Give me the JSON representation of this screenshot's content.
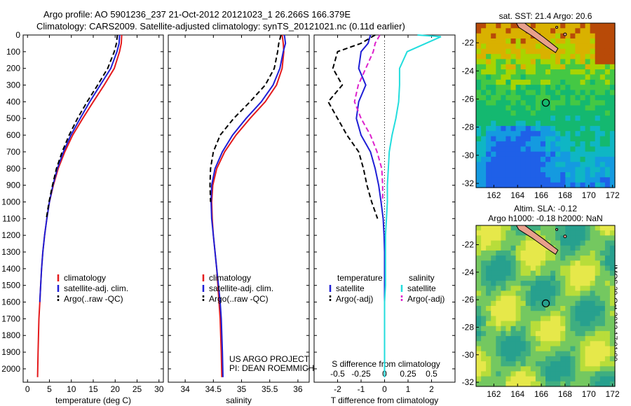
{
  "header": {
    "title_line1": "Argo profile: AO 5901236_237 21-Oct-2012 20121023_1 26.266S 166.379E",
    "title_line2": "Climatology: CARS2009. Satellite-adjusted climatology: synTS_20121021.nc (0.11d earlier)"
  },
  "stamp": "IMOS 30-Oct-2012 17:01:00",
  "colors": {
    "red": "#e41a1c",
    "blue": "#1f1fd6",
    "black": "#000000",
    "cyan": "#22dddd",
    "magenta": "#dd22cc"
  },
  "chart_data": [
    {
      "type": "line",
      "name": "temperature-profile",
      "xlabel": "temperature (deg C)",
      "ylabel": "",
      "xlim": [
        -1,
        31
      ],
      "ylim": [
        2080,
        0
      ],
      "xticks": [
        0,
        5,
        10,
        15,
        20,
        25,
        30
      ],
      "yticks": [
        0,
        100,
        200,
        300,
        400,
        500,
        600,
        700,
        800,
        900,
        1000,
        1100,
        1200,
        1300,
        1400,
        1500,
        1600,
        1700,
        1800,
        1900,
        2000
      ],
      "legend": [
        "climatology",
        "satellite-adj. clim.",
        "Argo(..raw -QC)"
      ],
      "legend_position": "lower-center",
      "series": [
        {
          "name": "climatology",
          "color": "red",
          "dash": "solid",
          "x": [
            21.5,
            21.4,
            21.0,
            19.8,
            17.5,
            15.0,
            12.6,
            10.3,
            8.5,
            7.0,
            5.9,
            5.0,
            4.4,
            3.9,
            3.5,
            3.2,
            3.0,
            2.8,
            2.6,
            2.5,
            2.4,
            2.3
          ],
          "y": [
            0,
            50,
            100,
            200,
            300,
            400,
            500,
            600,
            700,
            800,
            900,
            1000,
            1100,
            1200,
            1300,
            1400,
            1500,
            1600,
            1700,
            1800,
            1900,
            2050
          ]
        },
        {
          "name": "satellite-adj. clim.",
          "color": "blue",
          "dash": "solid",
          "x": [
            21.0,
            20.9,
            20.4,
            19.0,
            16.6,
            14.2,
            12.0,
            9.9,
            8.2,
            6.8,
            5.8,
            5.0,
            4.4,
            3.9,
            3.5,
            3.2,
            3.0,
            2.8
          ],
          "y": [
            0,
            50,
            100,
            200,
            300,
            400,
            500,
            600,
            700,
            800,
            900,
            1000,
            1100,
            1200,
            1300,
            1400,
            1500,
            1600
          ]
        },
        {
          "name": "Argo(..raw -QC)",
          "color": "black",
          "dash": "dashed",
          "x": [
            20.5,
            20.3,
            19.8,
            18.3,
            16.0,
            13.6,
            11.4,
            9.5,
            7.9,
            6.6,
            5.7,
            4.9,
            4.3
          ],
          "y": [
            0,
            50,
            100,
            200,
            300,
            400,
            500,
            600,
            700,
            800,
            900,
            1000,
            1100
          ]
        }
      ]
    },
    {
      "type": "line",
      "name": "salinity-profile",
      "xlabel": "salinity",
      "xlim": [
        33.7,
        36.2
      ],
      "ylim": [
        2080,
        0
      ],
      "xticks": [
        34,
        34.5,
        35,
        35.5,
        36
      ],
      "xticklabels": [
        "34",
        "34.5",
        "35",
        "35.5",
        "36"
      ],
      "legend": [
        "climatology",
        "satellite-adj. clim.",
        "Argo(..raw -QC)"
      ],
      "legend_position": "lower-center",
      "annotation": [
        "US ARGO PROJECT",
        "PI: DEAN ROEMMICH"
      ],
      "series": [
        {
          "name": "climatology",
          "color": "red",
          "dash": "solid",
          "x": [
            35.72,
            35.74,
            35.75,
            35.72,
            35.62,
            35.42,
            35.15,
            34.9,
            34.7,
            34.56,
            34.49,
            34.47,
            34.48,
            34.5,
            34.53,
            34.56,
            34.58,
            34.6,
            34.62,
            34.63,
            34.64,
            34.65
          ],
          "y": [
            0,
            50,
            100,
            200,
            300,
            400,
            500,
            600,
            700,
            800,
            900,
            1000,
            1100,
            1200,
            1300,
            1400,
            1500,
            1600,
            1700,
            1800,
            1900,
            2050
          ]
        },
        {
          "name": "satellite-adj. clim.",
          "color": "blue",
          "dash": "solid",
          "x": [
            35.76,
            35.78,
            35.74,
            35.68,
            35.56,
            35.35,
            35.08,
            34.84,
            34.66,
            34.53,
            34.47,
            34.46,
            34.47,
            34.5,
            34.53,
            34.56,
            34.59,
            34.62,
            34.64,
            34.65,
            34.66,
            34.67
          ],
          "y": [
            0,
            50,
            100,
            200,
            300,
            400,
            500,
            600,
            700,
            800,
            900,
            1000,
            1100,
            1200,
            1300,
            1400,
            1500,
            1600,
            1700,
            1800,
            1900,
            2050
          ]
        },
        {
          "name": "Argo(..raw -QC)",
          "color": "black",
          "dash": "dashed",
          "x": [
            35.7,
            35.66,
            35.64,
            35.58,
            35.42,
            35.15,
            34.86,
            34.62,
            34.5,
            34.45,
            34.44,
            34.45
          ],
          "y": [
            0,
            50,
            100,
            200,
            300,
            400,
            500,
            600,
            700,
            800,
            900,
            1000
          ]
        }
      ]
    },
    {
      "type": "line",
      "name": "difference-profile",
      "xlabel": "T difference from climatology",
      "xlabel2": "S difference from climatology",
      "xlim": [
        -3.0,
        3.0
      ],
      "ylim": [
        2080,
        0
      ],
      "xticks": [
        -2,
        -1,
        0,
        1,
        2
      ],
      "xticklabels": [
        "-2",
        "-1",
        "0",
        "1",
        "2"
      ],
      "xticks2": [
        -0.5,
        -0.25,
        0,
        0.25,
        0.5
      ],
      "xticklabels2": [
        "-0.5",
        "-0.25",
        "0",
        "0.25",
        "0.5"
      ],
      "legend_temperature_header": "temperature",
      "legend_salinity_header": "salinity",
      "legend": [
        "satellite",
        "Argo(-adj)",
        "satellite",
        "Argo(-adj)"
      ],
      "series": [
        {
          "name": "satellite",
          "group": "temperature",
          "color": "blue",
          "dash": "solid",
          "x": [
            -0.6,
            -0.7,
            -1.0,
            -1.1,
            -0.8,
            -1.1,
            -1.2,
            -1.0,
            -0.6,
            -0.4,
            -0.25,
            -0.15,
            -0.06,
            -0.02,
            0,
            0,
            0,
            0,
            0,
            0,
            0,
            0
          ],
          "y": [
            0,
            50,
            100,
            200,
            300,
            400,
            500,
            600,
            700,
            800,
            900,
            1000,
            1100,
            1200,
            1300,
            1400,
            1500,
            1600,
            1700,
            1800,
            1900,
            2050
          ]
        },
        {
          "name": "Argo(-adj)",
          "group": "temperature",
          "color": "black",
          "dash": "dashed",
          "x": [
            -0.4,
            -1.0,
            -2.0,
            -2.2,
            -1.8,
            -2.4,
            -2.0,
            -1.6,
            -1.1,
            -0.9,
            -0.75,
            -0.55,
            -0.3
          ],
          "y": [
            0,
            50,
            100,
            200,
            300,
            400,
            500,
            600,
            700,
            800,
            900,
            1000,
            1100
          ]
        },
        {
          "name": "satellite",
          "group": "salinity",
          "color": "cyan",
          "dash": "solid",
          "x": [
            0.35,
            0.6,
            0.24,
            0.16,
            0.16,
            0.15,
            0.12,
            0.08,
            0.05,
            0.04,
            0.03,
            0.03,
            0.02,
            0.01,
            0.01,
            0.01,
            0.01,
            0,
            0,
            0,
            0,
            0
          ],
          "y": [
            0,
            10,
            100,
            200,
            300,
            400,
            500,
            600,
            700,
            800,
            900,
            1000,
            1100,
            1200,
            1300,
            1400,
            1500,
            1600,
            1700,
            1800,
            1900,
            2050
          ]
        },
        {
          "name": "Argo(-adj)",
          "group": "salinity",
          "color": "magenta",
          "dash": "dashed",
          "x": [
            -0.05,
            -0.1,
            -0.12,
            -0.2,
            -0.28,
            -0.32,
            -0.25,
            -0.15,
            -0.08,
            -0.03,
            -0.02,
            -0.02
          ],
          "y": [
            0,
            50,
            100,
            200,
            300,
            400,
            500,
            600,
            700,
            800,
            900,
            1000
          ]
        }
      ]
    },
    {
      "type": "heatmap",
      "name": "sst-map",
      "title": "sat. SST: 21.4 Argo: 20.6",
      "xlim": [
        160.5,
        172.2
      ],
      "ylim": [
        -32.3,
        -20.6
      ],
      "xticks": [
        162,
        164,
        166,
        168,
        170,
        172
      ],
      "yticks": [
        -22,
        -24,
        -26,
        -28,
        -30,
        -32
      ],
      "profile_location": [
        166.379,
        -26.266
      ]
    },
    {
      "type": "heatmap",
      "name": "sla-map",
      "title": "Altim. SLA: -0.12",
      "subtitle": "Argo h1000: -0.18 h2000: NaN",
      "xlim": [
        160.5,
        172.2
      ],
      "ylim": [
        -32.3,
        -20.6
      ],
      "xticks": [
        162,
        164,
        166,
        168,
        170,
        172
      ],
      "yticks": [
        -22,
        -24,
        -26,
        -28,
        -30,
        -32
      ],
      "profile_location": [
        166.379,
        -26.266
      ]
    }
  ]
}
